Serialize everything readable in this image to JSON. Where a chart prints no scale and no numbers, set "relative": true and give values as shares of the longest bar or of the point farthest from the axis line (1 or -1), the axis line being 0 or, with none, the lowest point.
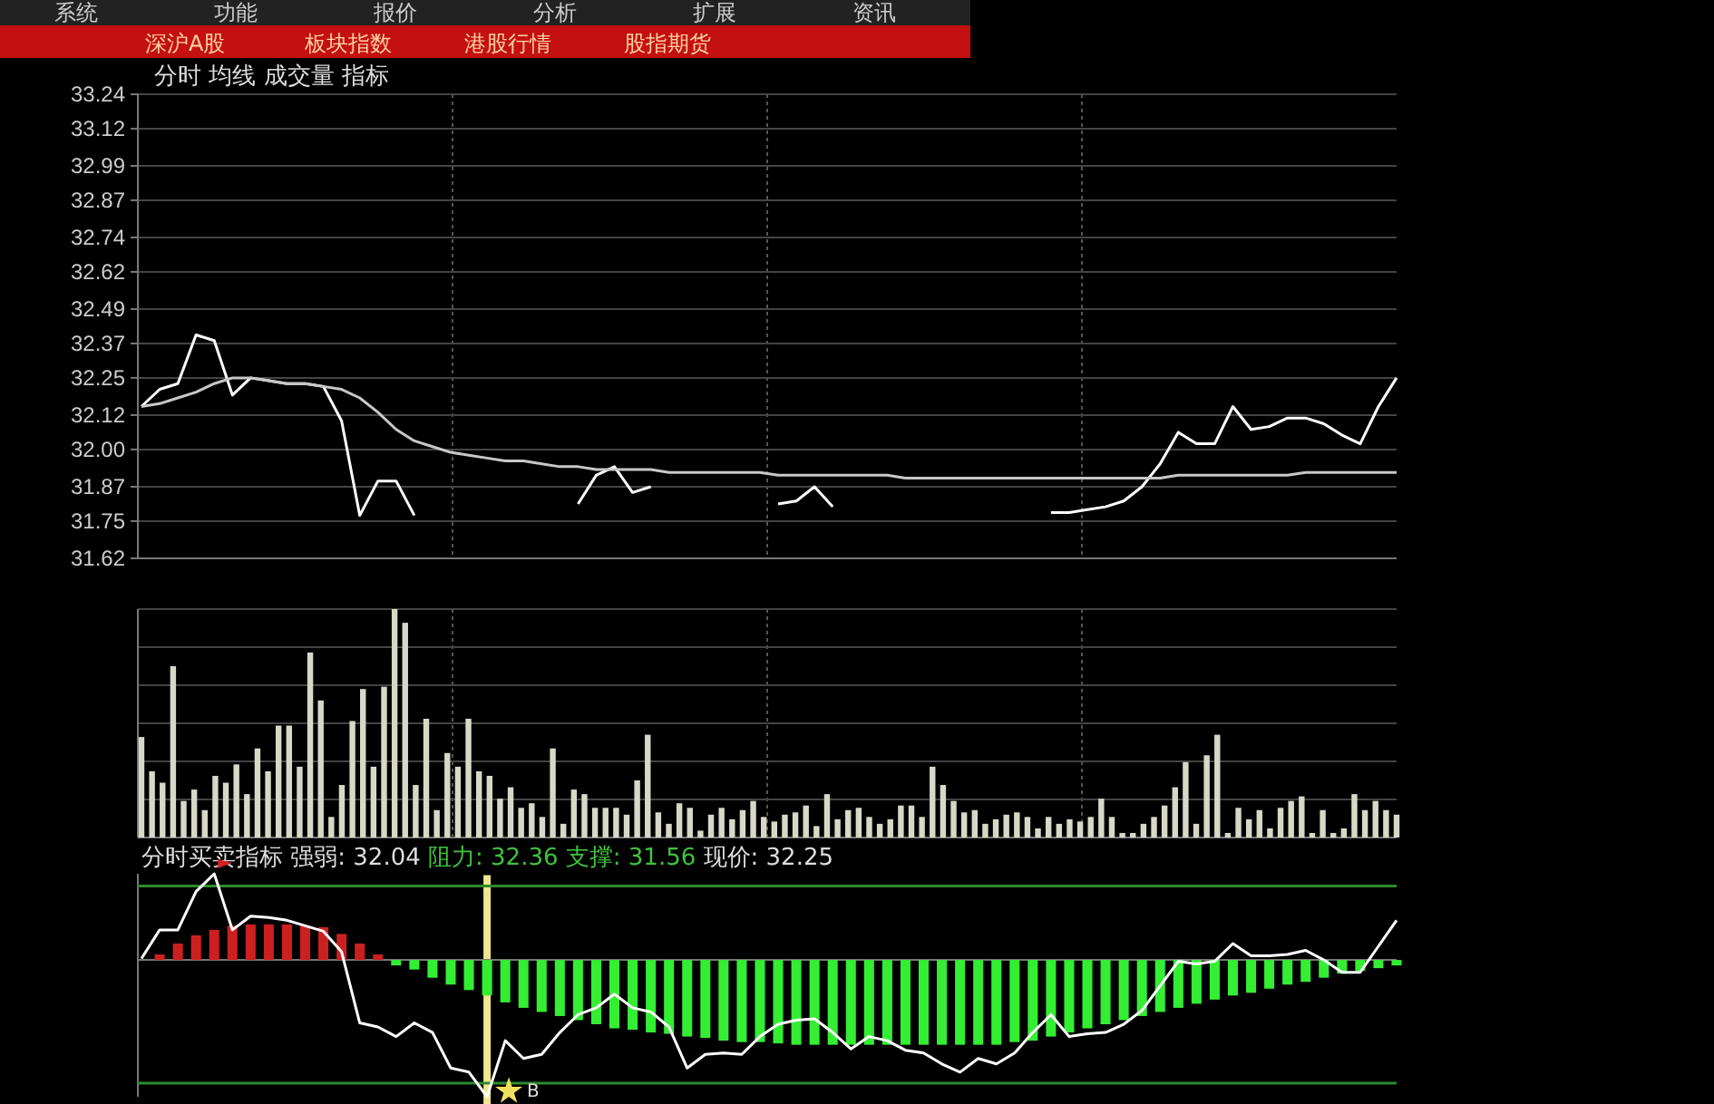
{
  "chart_data": [
    {
      "type": "line",
      "title": "分时 均线 成交量 指标",
      "annotations": [
        "系统",
        "功能",
        "报价",
        "分析",
        "扩展",
        "资讯",
        "深沪A股",
        "板块指数",
        "港股行情",
        "股指期货"
      ],
      "categories": [
        null,
        null,
        null,
        null,
        null,
        null,
        null,
        null,
        null,
        null,
        null,
        null,
        null,
        null,
        null,
        null,
        null,
        null,
        null,
        null,
        null,
        null,
        null,
        null,
        null,
        null,
        null,
        null,
        null,
        null,
        null,
        null,
        null,
        null,
        null,
        null,
        null,
        null,
        null,
        null,
        null,
        null,
        null,
        null,
        null,
        null,
        null,
        null,
        null,
        null,
        null,
        null,
        null,
        null,
        null,
        null,
        null,
        null,
        null,
        null,
        null,
        null,
        null,
        null,
        null,
        null,
        null,
        null,
        null,
        null
      ],
      "series": [
        {
          "color": "#ffffff",
          "values": [
            32.15,
            32.21,
            32.23,
            32.4,
            32.38,
            32.19,
            32.25,
            32.24,
            32.23,
            32.23,
            32.22,
            32.1,
            31.77,
            31.89,
            31.89,
            31.77,
            null,
            null,
            null,
            null,
            null,
            null,
            null,
            null,
            31.81,
            31.91,
            31.94,
            31.85,
            31.87,
            null,
            null,
            null,
            null,
            null,
            null,
            31.81,
            31.82,
            31.87,
            31.8,
            null,
            null,
            null,
            null,
            null,
            null,
            null,
            null,
            null,
            null,
            null,
            31.78,
            31.78,
            31.79,
            31.8,
            31.82,
            31.87,
            31.95,
            32.06,
            32.02,
            32.02,
            32.15,
            32.07,
            32.08,
            32.11,
            32.11,
            32.09,
            32.05,
            32.02,
            32.15,
            32.25
          ]
        },
        {
          "color": "#c8c8c8",
          "values": [
            32.15,
            32.16,
            32.18,
            32.2,
            32.23,
            32.25,
            32.25,
            32.24,
            32.23,
            32.23,
            32.22,
            32.21,
            32.18,
            32.13,
            32.07,
            32.03,
            32.01,
            31.99,
            31.98,
            31.97,
            31.96,
            31.96,
            31.95,
            31.94,
            31.94,
            31.93,
            31.93,
            31.93,
            31.93,
            31.92,
            31.92,
            31.92,
            31.92,
            31.92,
            31.92,
            31.91,
            31.91,
            31.91,
            31.91,
            31.91,
            31.91,
            31.91,
            31.9,
            31.9,
            31.9,
            31.9,
            31.9,
            31.9,
            31.9,
            31.9,
            31.9,
            31.9,
            31.9,
            31.9,
            31.9,
            31.9,
            31.9,
            31.91,
            31.91,
            31.91,
            31.91,
            31.91,
            31.91,
            31.91,
            31.92,
            31.92,
            31.92,
            31.92,
            31.92,
            31.92
          ]
        }
      ],
      "ylim": [
        31.62,
        33.24
      ],
      "yticks": [
        33.24,
        33.12,
        32.99,
        32.87,
        32.74,
        32.62,
        32.49,
        32.37,
        32.25,
        32.12,
        {
          "value": 32,
          "label": "32.00"
        },
        31.87,
        31.75,
        31.62
      ],
      "grid": true,
      "tick_labels": "y",
      "marker": "none",
      "line_style": "solid"
    },
    {
      "type": "bar",
      "relative": true,
      "grid": true,
      "color": "#d8d8c8",
      "categories": [
        null,
        null,
        null,
        null,
        null,
        null,
        null,
        null,
        null,
        null,
        null,
        null,
        null,
        null,
        null,
        null,
        null,
        null,
        null,
        null,
        null,
        null,
        null,
        null,
        null,
        null,
        null,
        null,
        null,
        null,
        null,
        null,
        null,
        null,
        null,
        null,
        null,
        null,
        null,
        null,
        null,
        null,
        null,
        null,
        null,
        null,
        null,
        null,
        null,
        null,
        null,
        null,
        null,
        null,
        null,
        null,
        null,
        null,
        null,
        null,
        null,
        null,
        null,
        null,
        null,
        null,
        null,
        null,
        null,
        null,
        null,
        null,
        null,
        null,
        null,
        null,
        null,
        null,
        null,
        null,
        null,
        null,
        null,
        null,
        null,
        null,
        null,
        null,
        null,
        null,
        null,
        null,
        null,
        null,
        null,
        null,
        null,
        null,
        null,
        null,
        null,
        null,
        null,
        null,
        null,
        null,
        null,
        null,
        null,
        null,
        null,
        null,
        null,
        null,
        null,
        null,
        null,
        null,
        null,
        null
      ],
      "values": [
        0.44,
        0.29,
        0.24,
        0.75,
        0.16,
        0.21,
        0.12,
        0.27,
        0.24,
        0.32,
        0.19,
        0.39,
        0.29,
        0.49,
        0.49,
        0.31,
        0.81,
        0.6,
        0.09,
        0.23,
        0.51,
        0.65,
        0.31,
        0.66,
        1,
        0.94,
        0.23,
        0.52,
        0.12,
        0.37,
        0.31,
        0.52,
        0.29,
        0.27,
        0.17,
        0.22,
        0.13,
        0.15,
        0.09,
        0.39,
        0.06,
        0.21,
        0.19,
        0.13,
        0.13,
        0.13,
        0.1,
        0.25,
        0.45,
        0.11,
        0.06,
        0.15,
        0.13,
        0.03,
        0.1,
        0.13,
        0.08,
        0.12,
        0.16,
        0.09,
        0.07,
        0.1,
        0.11,
        0.14,
        0.05,
        0.19,
        0.08,
        0.12,
        0.13,
        0.09,
        0.06,
        0.08,
        0.14,
        0.14,
        0.09,
        0.31,
        0.23,
        0.16,
        0.11,
        0.12,
        0.06,
        0.08,
        0.1,
        0.11,
        0.09,
        0.04,
        0.09,
        0.06,
        0.08,
        0.07,
        0.09,
        0.17,
        0.09,
        0.02,
        0.02,
        0.06,
        0.09,
        0.14,
        0.22,
        0.33,
        0.06,
        0.36,
        0.45,
        0.02,
        0.13,
        0.08,
        0.12,
        0.04,
        0.13,
        0.16,
        0.18,
        0.02,
        0.12,
        0.02,
        0.04,
        0.19,
        0.12,
        0.16,
        0.12,
        0.1
      ]
    },
    {
      "type": "bar",
      "relative": true,
      "title": "分时买卖指标",
      "annotations": [
        "强弱: 32.04",
        "阻力: 32.36",
        "支撑: 31.56",
        "现价: 32.25",
        "B"
      ],
      "categories": [
        null,
        null,
        null,
        null,
        null,
        null,
        null,
        null,
        null,
        null,
        null,
        null,
        null,
        null,
        null,
        null,
        null,
        null,
        null,
        null,
        null,
        null,
        null,
        null,
        null,
        null,
        null,
        null,
        null,
        null,
        null,
        null,
        null,
        null,
        null,
        null,
        null,
        null,
        null,
        null,
        null,
        null,
        null,
        null,
        null,
        null,
        null,
        null,
        null,
        null,
        null,
        null,
        null,
        null,
        null,
        null,
        null,
        null,
        null,
        null,
        null,
        null,
        null,
        null,
        null,
        null,
        null,
        null,
        null,
        null
      ],
      "ref_lines": [
        {
          "axis": "y",
          "value": 0.54,
          "color": "#2e8b2e"
        },
        {
          "axis": "y",
          "value": -0.9,
          "color": "#2e8b2e"
        }
      ],
      "series": [
        {
          "type": "bar",
          "values": [
            0,
            0.04,
            0.12,
            0.18,
            0.22,
            0.25,
            0.26,
            0.26,
            0.26,
            0.25,
            0.24,
            0.19,
            0.12,
            0.04,
            -0.04,
            -0.07,
            -0.13,
            -0.18,
            -0.22,
            -0.26,
            -0.31,
            -0.35,
            -0.38,
            -0.41,
            -0.44,
            -0.47,
            -0.5,
            -0.51,
            -0.53,
            -0.54,
            -0.56,
            -0.57,
            -0.59,
            -0.6,
            -0.6,
            -0.61,
            -0.62,
            -0.62,
            -0.62,
            -0.62,
            -0.62,
            -0.62,
            -0.62,
            -0.62,
            -0.62,
            -0.62,
            -0.62,
            -0.62,
            -0.6,
            -0.59,
            -0.56,
            -0.53,
            -0.5,
            -0.47,
            -0.44,
            -0.41,
            -0.38,
            -0.35,
            -0.32,
            -0.29,
            -0.26,
            -0.24,
            -0.21,
            -0.18,
            -0.16,
            -0.13,
            -0.1,
            -0.08,
            -0.06,
            -0.04
          ],
          "colors": [
            "#cc2020",
            "#cc2020",
            "#cc2020",
            "#cc2020",
            "#cc2020",
            "#cc2020",
            "#cc2020",
            "#cc2020",
            "#cc2020",
            "#cc2020",
            "#cc2020",
            "#cc2020",
            "#cc2020",
            "#cc2020",
            "#33ee33",
            "#33ee33",
            "#33ee33",
            "#33ee33",
            "#33ee33",
            "#33ee33",
            "#33ee33",
            "#33ee33",
            "#33ee33",
            "#33ee33",
            "#33ee33",
            "#33ee33",
            "#33ee33",
            "#33ee33",
            "#33ee33",
            "#33ee33",
            "#33ee33",
            "#33ee33",
            "#33ee33",
            "#33ee33",
            "#33ee33",
            "#33ee33",
            "#33ee33",
            "#33ee33",
            "#33ee33",
            "#33ee33",
            "#33ee33",
            "#33ee33",
            "#33ee33",
            "#33ee33",
            "#33ee33",
            "#33ee33",
            "#33ee33",
            "#33ee33",
            "#33ee33",
            "#33ee33",
            "#33ee33",
            "#33ee33",
            "#33ee33",
            "#33ee33",
            "#33ee33",
            "#33ee33",
            "#33ee33",
            "#33ee33",
            "#33ee33",
            "#33ee33",
            "#33ee33",
            "#33ee33",
            "#33ee33",
            "#33ee33",
            "#33ee33",
            "#33ee33",
            "#33ee33",
            "#33ee33",
            "#33ee33",
            "#33ee33"
          ]
        },
        {
          "type": "line",
          "color": "#ffffff",
          "values": [
            0.01,
            0.22,
            0.22,
            0.5,
            0.63,
            0.22,
            0.32,
            0.31,
            0.29,
            0.25,
            0.21,
            0.06,
            -0.46,
            -0.49,
            -0.56,
            -0.46,
            -0.53,
            -0.79,
            -0.82,
            -1,
            -0.59,
            -0.72,
            -0.69,
            -0.53,
            -0.4,
            -0.35,
            -0.25,
            -0.35,
            -0.38,
            -0.49,
            -0.79,
            -0.69,
            -0.68,
            -0.69,
            -0.56,
            -0.47,
            -0.44,
            -0.43,
            -0.53,
            -0.65,
            -0.56,
            -0.59,
            -0.66,
            -0.68,
            -0.76,
            -0.82,
            -0.72,
            -0.76,
            -0.68,
            -0.53,
            -0.4,
            -0.56,
            -0.54,
            -0.53,
            -0.47,
            -0.37,
            -0.19,
            -0.01,
            -0.03,
            -0.01,
            0.12,
            0.03,
            0.03,
            0.04,
            0.07,
            0,
            -0.09,
            -0.09,
            0.1,
            0.29
          ]
        }
      ]
    }
  ]
}
